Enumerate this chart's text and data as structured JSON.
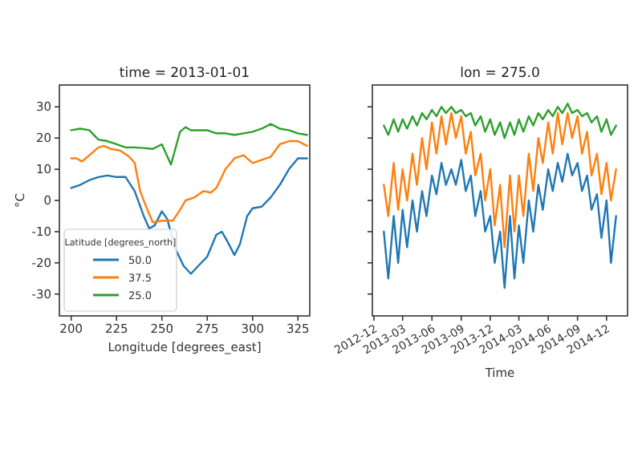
{
  "chart_data": [
    {
      "type": "line",
      "title": "time = 2013-01-01",
      "xlabel": "Longitude [degrees_east]",
      "ylabel": "°C",
      "legend_title": "Latitude [degrees_north]",
      "legend": "bottom left",
      "xlim": [
        193.5,
        331.5
      ],
      "xticks": [
        200,
        225,
        250,
        275,
        300,
        325
      ],
      "ylim": [
        -37,
        37
      ],
      "yticks": [
        -30,
        -20,
        -10,
        0,
        10,
        20,
        30
      ],
      "series": [
        {
          "name": "50.0",
          "color": "#1f77b4",
          "x": [
            200,
            205,
            210,
            215,
            220,
            225,
            230,
            235,
            240,
            243,
            246,
            250,
            253,
            257,
            262,
            266,
            270,
            275,
            280,
            283,
            286,
            290,
            293,
            297,
            300,
            305,
            310,
            315,
            320,
            325,
            330
          ],
          "values": [
            4,
            5,
            6.5,
            7.5,
            8,
            7.5,
            7.5,
            3,
            -5,
            -9,
            -8,
            -3.5,
            -6,
            -15,
            -21,
            -23.5,
            -21,
            -18,
            -11,
            -10,
            -13,
            -17.5,
            -14,
            -5,
            -2.5,
            -2,
            1,
            5,
            10,
            13.5,
            13.5
          ]
        },
        {
          "name": "37.5",
          "color": "#ff7f0e",
          "x": [
            200,
            203,
            206,
            210,
            215,
            218,
            222,
            227,
            232,
            235,
            238,
            242,
            245,
            250,
            256,
            260,
            263,
            268,
            273,
            277,
            280,
            285,
            290,
            295,
            300,
            305,
            310,
            315,
            320,
            325,
            330
          ],
          "values": [
            13.5,
            13.5,
            12.5,
            14.5,
            17,
            17.5,
            16.5,
            16,
            14,
            12,
            3,
            -3,
            -7,
            -6.5,
            -6.5,
            -3,
            0,
            1,
            3,
            2.5,
            4,
            10,
            13.5,
            14.5,
            12,
            13,
            14,
            18,
            19,
            19,
            17.5
          ]
        },
        {
          "name": "25.0",
          "color": "#2ca02c",
          "x": [
            200,
            205,
            210,
            215,
            220,
            225,
            230,
            235,
            240,
            245,
            250,
            255,
            260,
            263,
            266,
            270,
            275,
            280,
            285,
            290,
            295,
            300,
            305,
            310,
            315,
            320,
            325,
            330
          ],
          "values": [
            22.5,
            23,
            22.5,
            19.5,
            19,
            18,
            17,
            17,
            16.8,
            16.5,
            18,
            11.5,
            22,
            23.5,
            22.5,
            22.5,
            22.5,
            21.5,
            21.5,
            21,
            21.5,
            22,
            23,
            24.5,
            23,
            22.5,
            21.5,
            21
          ]
        }
      ]
    },
    {
      "type": "line",
      "title": "lon = 275.0",
      "xlabel": "Time",
      "tick_labels": "x",
      "xlim": [
        "2012-11-26",
        "2015-02-05"
      ],
      "ylim": [
        -37,
        37
      ],
      "yticks": [
        {
          "value": -30,
          "label": null
        },
        {
          "value": -20,
          "label": null
        },
        {
          "value": -10,
          "label": null
        },
        {
          "value": 0,
          "label": null
        },
        {
          "value": 10,
          "label": null
        },
        {
          "value": 20,
          "label": null
        },
        {
          "value": 30,
          "label": null
        }
      ],
      "xticks": [
        {
          "value": "2012-12-01",
          "label": "2012-12"
        },
        {
          "value": "2013-03-01",
          "label": "2013-03"
        },
        {
          "value": "2013-06-01",
          "label": "2013-06"
        },
        {
          "value": "2013-09-01",
          "label": "2013-09"
        },
        {
          "value": "2013-12-01",
          "label": "2013-12"
        },
        {
          "value": "2014-03-01",
          "label": "2014-03"
        },
        {
          "value": "2014-06-01",
          "label": "2014-06"
        },
        {
          "value": "2014-09-01",
          "label": "2014-09"
        },
        {
          "value": "2014-12-01",
          "label": "2014-12"
        }
      ],
      "x": [
        "2013-01-01",
        "2013-01-15",
        "2013-02-01",
        "2013-02-15",
        "2013-03-01",
        "2013-03-15",
        "2013-04-01",
        "2013-04-15",
        "2013-05-01",
        "2013-05-15",
        "2013-06-01",
        "2013-06-15",
        "2013-07-01",
        "2013-07-15",
        "2013-08-01",
        "2013-08-15",
        "2013-09-01",
        "2013-09-15",
        "2013-10-01",
        "2013-10-15",
        "2013-11-01",
        "2013-11-15",
        "2013-12-01",
        "2013-12-15",
        "2014-01-01",
        "2014-01-15",
        "2014-02-01",
        "2014-02-15",
        "2014-03-01",
        "2014-03-15",
        "2014-04-01",
        "2014-04-15",
        "2014-05-01",
        "2014-05-15",
        "2014-06-01",
        "2014-06-15",
        "2014-07-01",
        "2014-07-15",
        "2014-08-01",
        "2014-08-15",
        "2014-09-01",
        "2014-09-15",
        "2014-10-01",
        "2014-10-15",
        "2014-11-01",
        "2014-11-15",
        "2014-12-01",
        "2014-12-15",
        "2014-12-31"
      ],
      "series": [
        {
          "color": "#1f77b4",
          "values": [
            -10,
            -25,
            -5,
            -20,
            -3,
            -15,
            0,
            -10,
            3,
            -5,
            8,
            2,
            12,
            5,
            10,
            5,
            13,
            3,
            8,
            -5,
            3,
            -10,
            -5,
            -20,
            -10,
            -28,
            -5,
            -25,
            -8,
            -20,
            0,
            -10,
            5,
            -3,
            10,
            3,
            12,
            6,
            15,
            8,
            12,
            3,
            8,
            -3,
            2,
            -12,
            0,
            -20,
            -5
          ]
        },
        {
          "color": "#ff7f0e",
          "values": [
            5,
            -5,
            12,
            -3,
            10,
            0,
            15,
            5,
            20,
            10,
            25,
            15,
            27,
            18,
            28,
            20,
            27,
            15,
            22,
            8,
            15,
            0,
            10,
            -8,
            5,
            -15,
            8,
            -10,
            8,
            -5,
            15,
            3,
            20,
            12,
            25,
            15,
            28,
            18,
            28,
            20,
            27,
            15,
            22,
            8,
            15,
            2,
            12,
            0,
            10
          ]
        },
        {
          "color": "#2ca02c",
          "values": [
            24,
            21,
            26,
            22,
            26,
            23,
            27,
            24,
            28,
            26,
            29,
            27,
            30,
            28,
            30,
            28,
            29,
            27,
            28,
            24,
            27,
            22,
            26,
            21,
            25,
            20,
            25,
            21,
            26,
            22,
            27,
            24,
            28,
            26,
            29,
            27,
            30,
            28,
            31,
            28,
            29,
            27,
            28,
            25,
            27,
            22,
            26,
            21,
            24
          ]
        }
      ]
    }
  ]
}
